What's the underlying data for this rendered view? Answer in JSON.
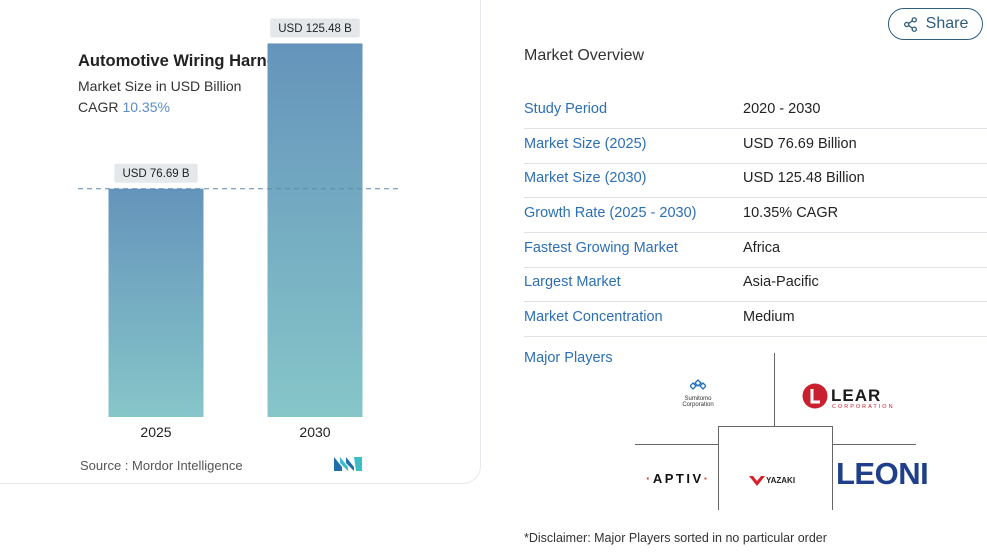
{
  "share": {
    "label": "Share",
    "icon": "share-icon"
  },
  "chart_data": {
    "type": "bar",
    "title": "Automotive Wiring Harness Market",
    "subtitle": "Market Size in USD Billion",
    "cagr_label": "CAGR",
    "cagr_value": "10.35%",
    "categories": [
      "2025",
      "2030"
    ],
    "values": [
      76.69,
      125.48
    ],
    "value_labels": [
      "USD 76.69 B",
      "USD 125.48 B"
    ],
    "ylim": [
      0,
      130
    ],
    "reference_line": {
      "value": 76.69,
      "style": "dashed"
    },
    "gradient_top": "#6594bb",
    "gradient_bottom": "#86c6c9",
    "grid": false,
    "legend": "none"
  },
  "source": {
    "label": "Source :",
    "name": "Mordor Intelligence",
    "logo_icon": "mordor-intelligence-logo"
  },
  "overview": {
    "title": "Market Overview",
    "rows": [
      {
        "key": "Study Period",
        "value": "2020 - 2030"
      },
      {
        "key": "Market Size (2025)",
        "value": "USD 76.69 Billion"
      },
      {
        "key": "Market Size (2030)",
        "value": "USD 125.48 Billion"
      },
      {
        "key": "Growth Rate (2025 - 2030)",
        "value": "10.35% CAGR"
      },
      {
        "key": "Fastest Growing Market",
        "value": "Africa"
      },
      {
        "key": "Largest Market",
        "value": "Asia-Pacific"
      },
      {
        "key": "Market Concentration",
        "value": "Medium"
      }
    ]
  },
  "players": {
    "label": "Major Players",
    "logos": [
      {
        "name": "Sumitomo Corporation",
        "line1": "Sumitomo",
        "line2": "Corporation"
      },
      {
        "name": "Lear Corporation",
        "word": "LEAR",
        "sub": "CORPORATION"
      },
      {
        "name": "Aptiv",
        "word": "APTIV"
      },
      {
        "name": "Yazaki",
        "word": "YAZAKI"
      },
      {
        "name": "Leoni",
        "word": "LEONI"
      }
    ]
  },
  "disclaimer": "*Disclaimer: Major Players sorted in no particular order",
  "colors": {
    "accent": "#2c6fb6",
    "share_border": "#2f5d7c",
    "cagr": "#5b8cc6",
    "lear_red": "#c8202f",
    "leoni_blue": "#1f3f8a"
  }
}
